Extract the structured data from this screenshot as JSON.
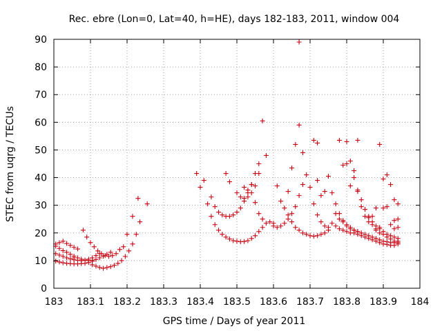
{
  "chart_data": {
    "type": "scatter",
    "title": "Rec. ebre (Lon=0, Lat=40, h=HE), days 182-183, 2011, window 004",
    "xlabel": "GPS time / Days of year 2011",
    "ylabel": "STEC from uqrg / TECUs",
    "xlim": [
      183,
      184
    ],
    "ylim": [
      0,
      90
    ],
    "x_ticks": [
      183,
      183.1,
      183.2,
      183.3,
      183.4,
      183.5,
      183.6,
      183.7,
      183.8,
      183.9,
      184
    ],
    "x_tick_labels": [
      "183",
      "183.1",
      "183.2",
      "183.3",
      "183.4",
      "183.5",
      "183.6",
      "183.7",
      "183.8",
      "183.9",
      "184"
    ],
    "y_ticks": [
      0,
      10,
      20,
      30,
      40,
      50,
      60,
      70,
      80,
      90
    ],
    "y_tick_labels": [
      "0",
      "10",
      "20",
      "30",
      "40",
      "50",
      "60",
      "70",
      "80",
      "90"
    ],
    "grid": true,
    "marker": "+",
    "color": "#c8000f",
    "series": [
      {
        "points": [
          [
            183.005,
            9.8
          ],
          [
            183.015,
            9.5
          ],
          [
            183.025,
            9.2
          ],
          [
            183.035,
            9.0
          ],
          [
            183.045,
            8.9
          ],
          [
            183.055,
            8.8
          ],
          [
            183.065,
            8.8
          ],
          [
            183.075,
            8.9
          ],
          [
            183.085,
            9.0
          ],
          [
            183.095,
            9.3
          ],
          [
            183.105,
            9.8
          ],
          [
            183.115,
            10.4
          ],
          [
            183.125,
            11.0
          ],
          [
            183.135,
            11.6
          ],
          [
            183.145,
            12.3
          ],
          [
            183.155,
            13.0
          ],
          [
            183.005,
            12.5
          ],
          [
            183.015,
            12.0
          ],
          [
            183.025,
            11.5
          ],
          [
            183.035,
            11.0
          ],
          [
            183.045,
            10.6
          ],
          [
            183.055,
            10.3
          ],
          [
            183.065,
            10.1
          ],
          [
            183.075,
            10.0
          ],
          [
            183.085,
            10.1
          ],
          [
            183.095,
            10.5
          ],
          [
            183.105,
            11.0
          ],
          [
            183.115,
            11.8
          ],
          [
            183.125,
            12.5
          ],
          [
            183.005,
            15.2
          ],
          [
            183.015,
            14.4
          ],
          [
            183.025,
            13.6
          ],
          [
            183.035,
            13.0
          ],
          [
            183.045,
            12.3
          ],
          [
            183.055,
            11.6
          ],
          [
            183.065,
            11.0
          ],
          [
            183.075,
            10.5
          ],
          [
            183.085,
            10.2
          ],
          [
            183.095,
            10.0
          ],
          [
            183.105,
            10.0
          ],
          [
            183.005,
            16.0
          ],
          [
            183.015,
            16.5
          ],
          [
            183.025,
            17.0
          ],
          [
            183.035,
            16.2
          ],
          [
            183.045,
            15.5
          ],
          [
            183.055,
            14.8
          ],
          [
            183.065,
            14.2
          ],
          [
            183.105,
            8.5
          ],
          [
            183.115,
            8.0
          ],
          [
            183.125,
            7.5
          ],
          [
            183.135,
            7.2
          ],
          [
            183.145,
            7.5
          ],
          [
            183.155,
            7.8
          ],
          [
            183.165,
            8.3
          ],
          [
            183.175,
            9.0
          ],
          [
            183.185,
            10.0
          ],
          [
            183.195,
            11.5
          ],
          [
            183.205,
            13.5
          ],
          [
            183.215,
            16.0
          ],
          [
            183.225,
            19.5
          ],
          [
            183.235,
            24.0
          ],
          [
            183.255,
            30.5
          ],
          [
            183.08,
            21.0
          ],
          [
            183.09,
            18.5
          ],
          [
            183.1,
            16.5
          ],
          [
            183.11,
            15.0
          ],
          [
            183.12,
            13.5
          ],
          [
            183.13,
            12.5
          ],
          [
            183.14,
            11.8
          ],
          [
            183.15,
            11.5
          ],
          [
            183.16,
            11.8
          ],
          [
            183.17,
            12.5
          ],
          [
            183.18,
            14.0
          ],
          [
            183.19,
            15.0
          ],
          [
            183.2,
            19.5
          ],
          [
            183.215,
            26.0
          ],
          [
            183.23,
            32.5
          ],
          [
            183.055,
            11.0
          ],
          [
            183.39,
            41.5
          ],
          [
            183.4,
            36.5
          ],
          [
            183.41,
            39.0
          ],
          [
            183.42,
            30.5
          ],
          [
            183.43,
            26.0
          ],
          [
            183.44,
            23.0
          ],
          [
            183.45,
            21.0
          ],
          [
            183.46,
            19.5
          ],
          [
            183.47,
            18.5
          ],
          [
            183.48,
            17.8
          ],
          [
            183.49,
            17.2
          ],
          [
            183.5,
            17.0
          ],
          [
            183.51,
            16.8
          ],
          [
            183.52,
            16.9
          ],
          [
            183.53,
            17.2
          ],
          [
            183.54,
            18.0
          ],
          [
            183.55,
            19.0
          ],
          [
            183.56,
            20.5
          ],
          [
            183.57,
            22.0
          ],
          [
            183.58,
            23.5
          ],
          [
            183.59,
            24.0
          ],
          [
            183.6,
            23.5
          ],
          [
            183.43,
            33.0
          ],
          [
            183.44,
            29.5
          ],
          [
            183.45,
            27.5
          ],
          [
            183.46,
            26.5
          ],
          [
            183.47,
            26.0
          ],
          [
            183.48,
            26.0
          ],
          [
            183.49,
            26.5
          ],
          [
            183.5,
            27.5
          ],
          [
            183.51,
            29.0
          ],
          [
            183.52,
            31.5
          ],
          [
            183.53,
            34.5
          ],
          [
            183.54,
            37.5
          ],
          [
            183.55,
            41.5
          ],
          [
            183.56,
            45.0
          ],
          [
            183.57,
            60.5
          ],
          [
            183.47,
            41.5
          ],
          [
            183.48,
            38.5
          ],
          [
            183.5,
            34.5
          ],
          [
            183.51,
            33.0
          ],
          [
            183.52,
            32.5
          ],
          [
            183.53,
            33.0
          ],
          [
            183.54,
            34.5
          ],
          [
            183.55,
            37.0
          ],
          [
            183.56,
            41.5
          ],
          [
            183.58,
            48.0
          ],
          [
            183.52,
            36.5
          ],
          [
            183.53,
            35.5
          ],
          [
            183.54,
            37.5
          ],
          [
            183.55,
            31.0
          ],
          [
            183.56,
            27.0
          ],
          [
            183.57,
            25.0
          ],
          [
            183.6,
            22.5
          ],
          [
            183.61,
            22.0
          ],
          [
            183.62,
            22.5
          ],
          [
            183.63,
            23.5
          ],
          [
            183.64,
            25.0
          ],
          [
            183.65,
            27.0
          ],
          [
            183.66,
            29.5
          ],
          [
            183.67,
            33.5
          ],
          [
            183.68,
            37.5
          ],
          [
            183.61,
            37.0
          ],
          [
            183.62,
            31.5
          ],
          [
            183.63,
            29.0
          ],
          [
            183.64,
            26.5
          ],
          [
            183.65,
            24.0
          ],
          [
            183.66,
            22.0
          ],
          [
            183.67,
            21.0
          ],
          [
            183.68,
            20.0
          ],
          [
            183.69,
            19.5
          ],
          [
            183.7,
            19.0
          ],
          [
            183.71,
            18.8
          ],
          [
            183.72,
            19.0
          ],
          [
            183.73,
            19.5
          ],
          [
            183.74,
            20.0
          ],
          [
            183.75,
            21.0
          ],
          [
            183.64,
            35.0
          ],
          [
            183.65,
            43.5
          ],
          [
            183.66,
            52.0
          ],
          [
            183.67,
            59.0
          ],
          [
            183.67,
            89.0
          ],
          [
            183.68,
            49.0
          ],
          [
            183.69,
            41.0
          ],
          [
            183.7,
            36.5
          ],
          [
            183.71,
            30.5
          ],
          [
            183.72,
            26.5
          ],
          [
            183.73,
            24.0
          ],
          [
            183.74,
            22.5
          ],
          [
            183.75,
            22.0
          ],
          [
            183.71,
            53.5
          ],
          [
            183.72,
            52.5
          ],
          [
            183.72,
            39.0
          ],
          [
            183.73,
            33.5
          ],
          [
            183.74,
            35.0
          ],
          [
            183.75,
            40.5
          ],
          [
            183.76,
            34.5
          ],
          [
            183.77,
            30.5
          ],
          [
            183.78,
            27.0
          ],
          [
            183.79,
            24.5
          ],
          [
            183.8,
            23.0
          ],
          [
            183.81,
            22.0
          ],
          [
            183.82,
            21.0
          ],
          [
            183.83,
            20.5
          ],
          [
            183.78,
            53.5
          ],
          [
            183.79,
            44.5
          ],
          [
            183.8,
            45.0
          ],
          [
            183.81,
            46.0
          ],
          [
            183.82,
            42.5
          ],
          [
            183.83,
            35.5
          ],
          [
            183.84,
            32.0
          ],
          [
            183.85,
            28.5
          ],
          [
            183.86,
            26.0
          ],
          [
            183.87,
            24.0
          ],
          [
            183.88,
            22.5
          ],
          [
            183.89,
            21.5
          ],
          [
            183.8,
            53.0
          ],
          [
            183.83,
            53.5
          ],
          [
            183.81,
            37.0
          ],
          [
            183.82,
            40.0
          ],
          [
            183.83,
            35.0
          ],
          [
            183.84,
            29.5
          ],
          [
            183.85,
            26.0
          ],
          [
            183.86,
            24.0
          ],
          [
            183.87,
            23.0
          ],
          [
            183.88,
            21.5
          ],
          [
            183.76,
            23.5
          ],
          [
            183.77,
            22.5
          ],
          [
            183.78,
            21.5
          ],
          [
            183.79,
            21.0
          ],
          [
            183.8,
            20.5
          ],
          [
            183.81,
            20.0
          ],
          [
            183.82,
            20.0
          ],
          [
            183.83,
            19.5
          ],
          [
            183.84,
            19.0
          ],
          [
            183.85,
            18.5
          ],
          [
            183.86,
            18.0
          ],
          [
            183.87,
            17.5
          ],
          [
            183.88,
            17.0
          ],
          [
            183.89,
            16.5
          ],
          [
            183.9,
            16.0
          ],
          [
            183.91,
            15.8
          ],
          [
            183.92,
            15.5
          ],
          [
            183.93,
            15.5
          ],
          [
            183.94,
            16.0
          ],
          [
            183.77,
            27.0
          ],
          [
            183.78,
            25.0
          ],
          [
            183.79,
            24.0
          ],
          [
            183.8,
            22.5
          ],
          [
            183.81,
            21.5
          ],
          [
            183.82,
            21.0
          ],
          [
            183.83,
            20.5
          ],
          [
            183.84,
            20.0
          ],
          [
            183.85,
            19.5
          ],
          [
            183.86,
            19.0
          ],
          [
            183.87,
            18.5
          ],
          [
            183.88,
            18.0
          ],
          [
            183.89,
            17.5
          ],
          [
            183.9,
            17.0
          ],
          [
            183.91,
            16.8
          ],
          [
            183.92,
            16.5
          ],
          [
            183.93,
            16.5
          ],
          [
            183.94,
            17.0
          ],
          [
            183.86,
            25.5
          ],
          [
            183.87,
            26.0
          ],
          [
            183.88,
            29.0
          ],
          [
            183.89,
            52.0
          ],
          [
            183.9,
            39.5
          ],
          [
            183.91,
            41.0
          ],
          [
            183.92,
            37.5
          ],
          [
            183.93,
            32.0
          ],
          [
            183.94,
            30.5
          ],
          [
            183.9,
            29.0
          ],
          [
            183.91,
            29.5
          ],
          [
            183.89,
            22.0
          ],
          [
            183.9,
            20.5
          ],
          [
            183.91,
            19.5
          ],
          [
            183.92,
            19.0
          ],
          [
            183.93,
            18.5
          ],
          [
            183.94,
            18.0
          ],
          [
            183.88,
            21.0
          ],
          [
            183.89,
            20.0
          ],
          [
            183.9,
            19.5
          ],
          [
            183.91,
            18.5
          ],
          [
            183.92,
            17.8
          ],
          [
            183.93,
            17.0
          ],
          [
            183.94,
            16.5
          ],
          [
            183.92,
            23.0
          ],
          [
            183.93,
            24.5
          ],
          [
            183.94,
            25.0
          ],
          [
            183.93,
            21.5
          ],
          [
            183.94,
            22.0
          ]
        ]
      }
    ]
  }
}
